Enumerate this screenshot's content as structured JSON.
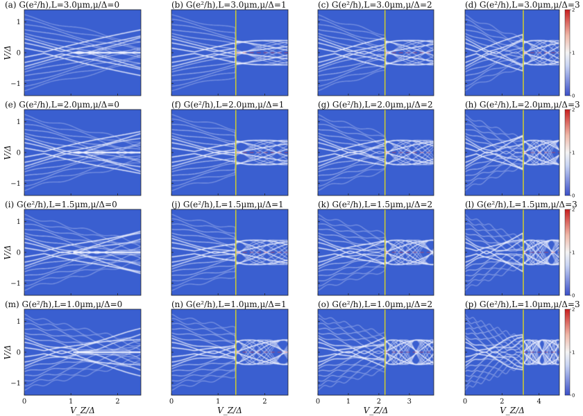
{
  "figure": {
    "xlabel": "V_Z/Δ",
    "ylabel": "V/Δ",
    "colorbar_ticks": [
      "0",
      "1",
      "2"
    ]
  },
  "chart_data": [
    {
      "type": "heatmap",
      "title": "(a) G(e²/h),L=3.0μm,μ/Δ=0",
      "L_um": 3.0,
      "mu": 0,
      "xlim": [
        0,
        2.5
      ],
      "ylim": [
        -1.4,
        1.4
      ],
      "xticks": [
        0,
        1,
        2
      ],
      "yticks": [
        -1,
        0,
        1
      ],
      "vline": null,
      "colorbar": false
    },
    {
      "type": "heatmap",
      "title": "(b) G(e²/h),L=3.0μm,μ/Δ=1",
      "L_um": 3.0,
      "mu": 1,
      "xlim": [
        0,
        2.5
      ],
      "ylim": [
        -1.4,
        1.4
      ],
      "xticks": [
        0,
        1,
        2
      ],
      "yticks": [
        -1,
        0,
        1
      ],
      "vline": 1.38,
      "colorbar": false
    },
    {
      "type": "heatmap",
      "title": "(c) G(e²/h),L=3.0μm,μ/Δ=2",
      "L_um": 3.0,
      "mu": 2,
      "xlim": [
        0,
        3.8
      ],
      "ylim": [
        -1.4,
        1.4
      ],
      "xticks": [
        0,
        1,
        2,
        3
      ],
      "yticks": [
        -1,
        0,
        1
      ],
      "vline": 2.2,
      "colorbar": false
    },
    {
      "type": "heatmap",
      "title": "(d) G(e²/h),L=3.0μm,μ/Δ=3",
      "L_um": 3.0,
      "mu": 3,
      "xlim": [
        0,
        5.1
      ],
      "ylim": [
        -1.4,
        1.4
      ],
      "xticks": [
        0,
        2,
        4
      ],
      "yticks": [
        -1,
        0,
        1
      ],
      "vline": 3.15,
      "colorbar": true
    },
    {
      "type": "heatmap",
      "title": "(e) G(e²/h),L=2.0μm,μ/Δ=0",
      "L_um": 2.0,
      "mu": 0,
      "xlim": [
        0,
        2.5
      ],
      "ylim": [
        -1.4,
        1.4
      ],
      "xticks": [
        0,
        1,
        2
      ],
      "yticks": [
        -1,
        0,
        1
      ],
      "vline": null,
      "colorbar": false
    },
    {
      "type": "heatmap",
      "title": "(f) G(e²/h),L=2.0μm,μ/Δ=1",
      "L_um": 2.0,
      "mu": 1,
      "xlim": [
        0,
        2.5
      ],
      "ylim": [
        -1.4,
        1.4
      ],
      "xticks": [
        0,
        1,
        2
      ],
      "yticks": [
        -1,
        0,
        1
      ],
      "vline": 1.38,
      "colorbar": false
    },
    {
      "type": "heatmap",
      "title": "(g) G(e²/h),L=2.0μm,μ/Δ=2",
      "L_um": 2.0,
      "mu": 2,
      "xlim": [
        0,
        3.8
      ],
      "ylim": [
        -1.4,
        1.4
      ],
      "xticks": [
        0,
        1,
        2,
        3
      ],
      "yticks": [
        -1,
        0,
        1
      ],
      "vline": 2.2,
      "colorbar": false
    },
    {
      "type": "heatmap",
      "title": "(h) G(e²/h),L=2.0μm,μ/Δ=3",
      "L_um": 2.0,
      "mu": 3,
      "xlim": [
        0,
        5.1
      ],
      "ylim": [
        -1.4,
        1.4
      ],
      "xticks": [
        0,
        2,
        4
      ],
      "yticks": [
        -1,
        0,
        1
      ],
      "vline": 3.15,
      "colorbar": true
    },
    {
      "type": "heatmap",
      "title": "(i) G(e²/h),L=1.5μm,μ/Δ=0",
      "L_um": 1.5,
      "mu": 0,
      "xlim": [
        0,
        2.5
      ],
      "ylim": [
        -1.4,
        1.4
      ],
      "xticks": [
        0,
        1,
        2
      ],
      "yticks": [
        -1,
        0,
        1
      ],
      "vline": null,
      "colorbar": false
    },
    {
      "type": "heatmap",
      "title": "(j) G(e²/h),L=1.5μm,μ/Δ=1",
      "L_um": 1.5,
      "mu": 1,
      "xlim": [
        0,
        2.5
      ],
      "ylim": [
        -1.4,
        1.4
      ],
      "xticks": [
        0,
        1,
        2
      ],
      "yticks": [
        -1,
        0,
        1
      ],
      "vline": 1.38,
      "colorbar": false
    },
    {
      "type": "heatmap",
      "title": "(k) G(e²/h),L=1.5μm,μ/Δ=2",
      "L_um": 1.5,
      "mu": 2,
      "xlim": [
        0,
        3.8
      ],
      "ylim": [
        -1.4,
        1.4
      ],
      "xticks": [
        0,
        1,
        2,
        3
      ],
      "yticks": [
        -1,
        0,
        1
      ],
      "vline": 2.2,
      "colorbar": false
    },
    {
      "type": "heatmap",
      "title": "(l) G(e²/h),L=1.5μm,μ/Δ=3",
      "L_um": 1.5,
      "mu": 3,
      "xlim": [
        0,
        5.1
      ],
      "ylim": [
        -1.4,
        1.4
      ],
      "xticks": [
        0,
        2,
        4
      ],
      "yticks": [
        -1,
        0,
        1
      ],
      "vline": 3.15,
      "colorbar": true
    },
    {
      "type": "heatmap",
      "title": "(m) G(e²/h),L=1.0μm,μ/Δ=0",
      "L_um": 1.0,
      "mu": 0,
      "xlim": [
        0,
        2.5
      ],
      "ylim": [
        -1.4,
        1.4
      ],
      "xticks": [
        0,
        1,
        2
      ],
      "yticks": [
        -1,
        0,
        1
      ],
      "vline": null,
      "colorbar": false
    },
    {
      "type": "heatmap",
      "title": "(n) G(e²/h),L=1.0μm,μ/Δ=1",
      "L_um": 1.0,
      "mu": 1,
      "xlim": [
        0,
        2.5
      ],
      "ylim": [
        -1.4,
        1.4
      ],
      "xticks": [
        0,
        1,
        2
      ],
      "yticks": [
        -1,
        0,
        1
      ],
      "vline": 1.38,
      "colorbar": false
    },
    {
      "type": "heatmap",
      "title": "(o) G(e²/h),L=1.0μm,μ/Δ=2",
      "L_um": 1.0,
      "mu": 2,
      "xlim": [
        0,
        3.8
      ],
      "ylim": [
        -1.4,
        1.4
      ],
      "xticks": [
        0,
        1,
        2,
        3
      ],
      "yticks": [
        -1,
        0,
        1
      ],
      "vline": 2.2,
      "colorbar": false
    },
    {
      "type": "heatmap",
      "title": "(p) G(e²/h),L=1.0μm,μ/Δ=3",
      "L_um": 1.0,
      "mu": 3,
      "xlim": [
        0,
        5.1
      ],
      "ylim": [
        -1.4,
        1.4
      ],
      "xticks": [
        0,
        2,
        4
      ],
      "yticks": [
        -1,
        0,
        1
      ],
      "vline": 3.15,
      "colorbar": true
    }
  ],
  "colors": {
    "background_map": "#3a5fd0",
    "band": "#f2f4ff",
    "hot": "#e83a2e",
    "vline": "#c8c832"
  }
}
